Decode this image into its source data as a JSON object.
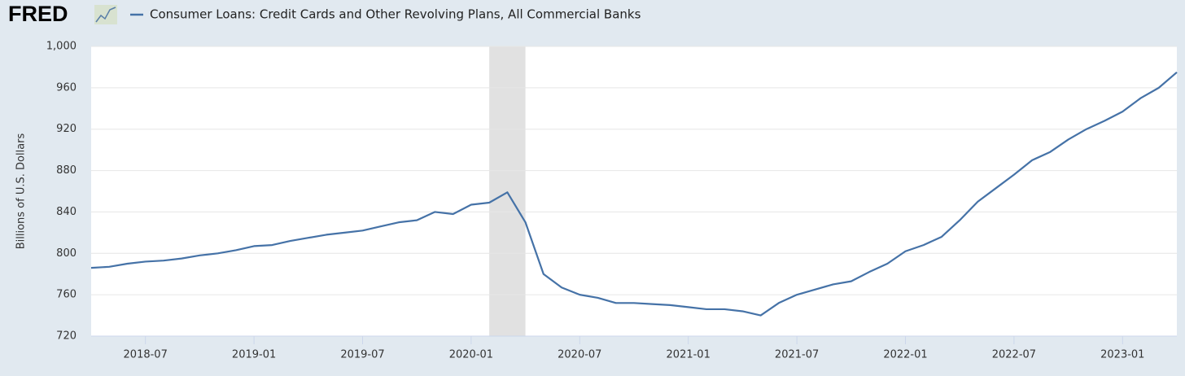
{
  "chart_data": {
    "type": "line",
    "logo": "FRED",
    "y_label": "Billions of U.S. Dollars",
    "x": [
      "2018-04",
      "2018-05",
      "2018-06",
      "2018-07",
      "2018-08",
      "2018-09",
      "2018-10",
      "2018-11",
      "2018-12",
      "2019-01",
      "2019-02",
      "2019-03",
      "2019-04",
      "2019-05",
      "2019-06",
      "2019-07",
      "2019-08",
      "2019-09",
      "2019-10",
      "2019-11",
      "2019-12",
      "2020-01",
      "2020-02",
      "2020-03",
      "2020-04",
      "2020-05",
      "2020-06",
      "2020-07",
      "2020-08",
      "2020-09",
      "2020-10",
      "2020-11",
      "2020-12",
      "2021-01",
      "2021-02",
      "2021-03",
      "2021-04",
      "2021-05",
      "2021-06",
      "2021-07",
      "2021-08",
      "2021-09",
      "2021-10",
      "2021-11",
      "2021-12",
      "2022-01",
      "2022-02",
      "2022-03",
      "2022-04",
      "2022-05",
      "2022-06",
      "2022-07",
      "2022-08",
      "2022-09",
      "2022-10",
      "2022-11",
      "2022-12",
      "2023-01",
      "2023-02",
      "2023-03",
      "2023-04"
    ],
    "series": [
      {
        "name": "Consumer Loans: Credit Cards and Other Revolving Plans, All Commercial Banks",
        "color": "#4572a7",
        "values": [
          786,
          787,
          790,
          792,
          793,
          795,
          798,
          800,
          803,
          807,
          808,
          812,
          815,
          818,
          820,
          822,
          826,
          830,
          832,
          840,
          838,
          847,
          849,
          859,
          830,
          780,
          767,
          760,
          757,
          752,
          752,
          751,
          750,
          748,
          746,
          746,
          744,
          740,
          752,
          760,
          765,
          770,
          773,
          782,
          790,
          802,
          808,
          816,
          832,
          850,
          863,
          876,
          890,
          898,
          910,
          920,
          928,
          937,
          950,
          960,
          975
        ]
      }
    ],
    "recessions": [
      {
        "start": "2020-02",
        "end": "2020-04"
      }
    ],
    "xlim": [
      "2018-04",
      "2023-04"
    ],
    "xticks": [
      "2018-07",
      "2019-01",
      "2019-07",
      "2020-01",
      "2020-07",
      "2021-01",
      "2021-07",
      "2022-01",
      "2022-07",
      "2023-01"
    ],
    "ylim": [
      720,
      1000
    ],
    "yticks": [
      720,
      760,
      800,
      840,
      880,
      920,
      960,
      {
        "value": 1000,
        "label": "1,000"
      }
    ],
    "grid": true
  }
}
